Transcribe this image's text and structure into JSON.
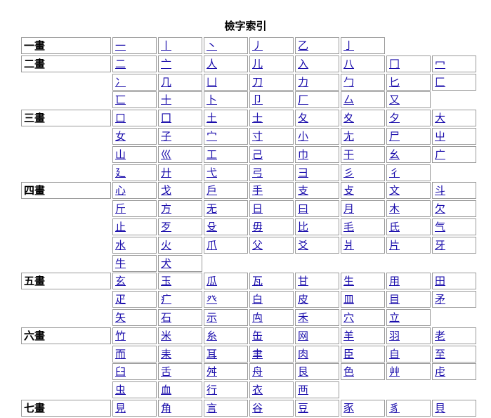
{
  "title": "檢字索引",
  "groups": [
    {
      "label": "一畫",
      "chars": [
        "一",
        "丨",
        "丶",
        "丿",
        "乙",
        "亅"
      ]
    },
    {
      "label": "二畫",
      "chars": [
        "二",
        "亠",
        "人",
        "儿",
        "入",
        "八",
        "冂",
        "冖",
        "冫",
        "几",
        "凵",
        "刀",
        "力",
        "勹",
        "匕",
        "匚",
        "匸",
        "十",
        "卜",
        "卩",
        "厂",
        "厶",
        "又"
      ]
    },
    {
      "label": "三畫",
      "chars": [
        "口",
        "囗",
        "土",
        "士",
        "夂",
        "夊",
        "夕",
        "大",
        "女",
        "子",
        "宀",
        "寸",
        "小",
        "尢",
        "尸",
        "屮",
        "山",
        "巛",
        "工",
        "己",
        "巾",
        "干",
        "幺",
        "广",
        "廴",
        "廾",
        "弋",
        "弓",
        "彐",
        "彡",
        "彳"
      ]
    },
    {
      "label": "四畫",
      "chars": [
        "心",
        "戈",
        "戶",
        "手",
        "支",
        "攴",
        "文",
        "斗",
        "斤",
        "方",
        "无",
        "日",
        "曰",
        "月",
        "木",
        "欠",
        "止",
        "歹",
        "殳",
        "毋",
        "比",
        "毛",
        "氏",
        "气",
        "水",
        "火",
        "爪",
        "父",
        "爻",
        "爿",
        "片",
        "牙",
        "牛",
        "犬"
      ]
    },
    {
      "label": "五畫",
      "chars": [
        "玄",
        "玉",
        "瓜",
        "瓦",
        "甘",
        "生",
        "用",
        "田",
        "疋",
        "疒",
        "癶",
        "白",
        "皮",
        "皿",
        "目",
        "矛",
        "矢",
        "石",
        "示",
        "禸",
        "禾",
        "穴",
        "立"
      ]
    },
    {
      "label": "六畫",
      "chars": [
        "竹",
        "米",
        "糸",
        "缶",
        "网",
        "羊",
        "羽",
        "老",
        "而",
        "耒",
        "耳",
        "聿",
        "肉",
        "臣",
        "自",
        "至",
        "臼",
        "舌",
        "舛",
        "舟",
        "艮",
        "色",
        "艸",
        "虍",
        "虫",
        "血",
        "行",
        "衣",
        "襾"
      ]
    },
    {
      "label": "七畫",
      "chars": [
        "見",
        "角",
        "言",
        "谷",
        "豆",
        "豕",
        "豸",
        "貝"
      ]
    }
  ]
}
